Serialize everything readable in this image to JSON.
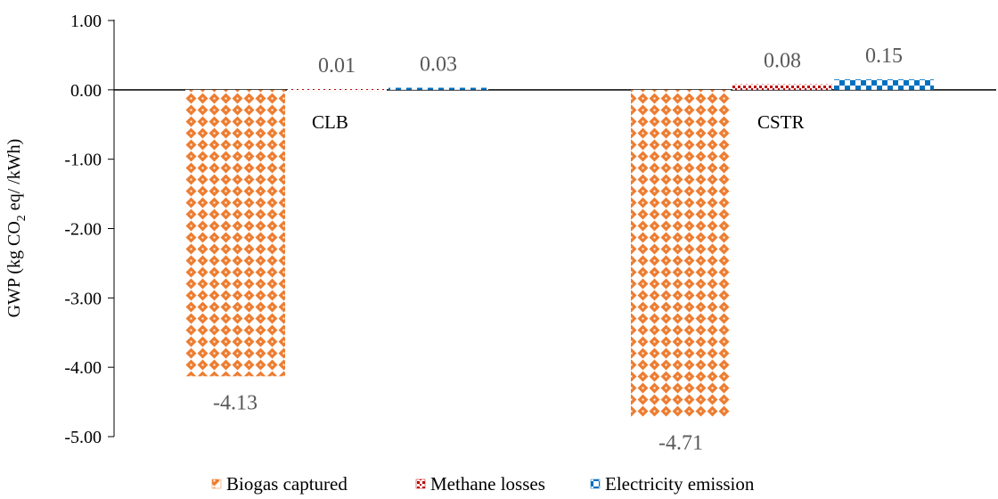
{
  "chart_data": {
    "type": "bar",
    "categories": [
      "CLB",
      "CSTR"
    ],
    "series": [
      {
        "name": "Biogas captured",
        "values": [
          -4.13,
          -4.71
        ],
        "labels": [
          "-4.13",
          "-4.71"
        ],
        "color": "#ED7D31",
        "pattern": "diamond-grid"
      },
      {
        "name": "Methane losses",
        "values": [
          0.01,
          0.08
        ],
        "labels": [
          "0.01",
          "0.08"
        ],
        "color": "#C00000",
        "pattern": "dotted"
      },
      {
        "name": "Electricity emission",
        "values": [
          0.03,
          0.15
        ],
        "labels": [
          "0.03",
          "0.15"
        ],
        "color": "#0070C0",
        "pattern": "checker"
      }
    ],
    "y_ticks": [
      1,
      0,
      -1,
      -2,
      -3,
      -4,
      -5
    ],
    "y_tick_labels": [
      "1.00",
      "0.00",
      "-1.00",
      "-2.00",
      "-3.00",
      "-4.00",
      "-5.00"
    ],
    "ylim": [
      -5,
      1
    ],
    "ylabel": {
      "pre": "GWP (kg CO",
      "sub": "2",
      "post": " eq/ /kWh)"
    },
    "title": "",
    "xlabel": "",
    "grid": false,
    "legend_position": "bottom"
  }
}
